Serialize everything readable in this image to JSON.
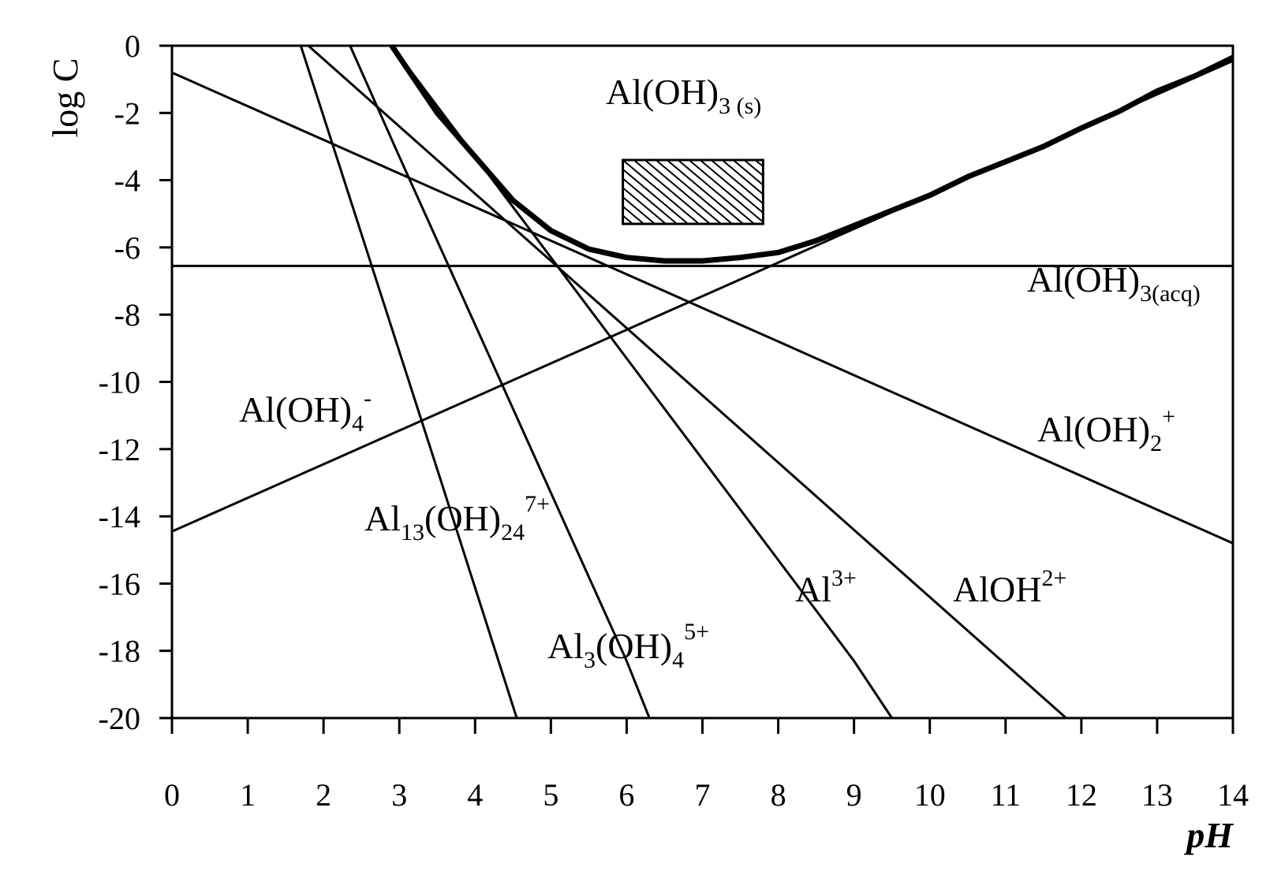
{
  "chart_data": {
    "type": "line",
    "xlabel": "pH",
    "ylabel": "log C",
    "xlim": [
      0,
      14
    ],
    "ylim": [
      -20,
      0
    ],
    "x_ticks": [
      0,
      1,
      2,
      3,
      4,
      5,
      6,
      7,
      8,
      9,
      10,
      11,
      12,
      13,
      14
    ],
    "y_ticks": [
      0,
      -2,
      -4,
      -6,
      -8,
      -10,
      -12,
      -14,
      -16,
      -18,
      -20
    ],
    "x_tick_labels": [
      "0",
      "1",
      "2",
      "3",
      "4",
      "5",
      "6",
      "7",
      "8",
      "9",
      "10",
      "11",
      "12",
      "13",
      "14"
    ],
    "y_tick_labels": [
      "0",
      "-2",
      "-4",
      "-6",
      "-8",
      "-10",
      "-12",
      "-14",
      "-16",
      "-18",
      "-20"
    ],
    "grid": false,
    "legend": "none",
    "series": [
      {
        "name": "Al(OH)3 (s)",
        "style": "bold",
        "x": [
          2.9,
          3.5,
          4.5,
          5.0,
          5.5,
          6.0,
          6.5,
          7.0,
          7.5,
          8.0,
          8.5,
          9.0,
          9.5,
          10.0,
          10.5,
          11.0,
          11.5,
          12.0,
          12.5,
          13.0,
          13.5,
          14.0
        ],
        "y": [
          0,
          -2.0,
          -4.6,
          -5.5,
          -6.05,
          -6.3,
          -6.4,
          -6.4,
          -6.3,
          -6.15,
          -5.8,
          -5.35,
          -4.9,
          -4.45,
          -3.9,
          -3.45,
          -3.0,
          -2.45,
          -1.95,
          -1.35,
          -0.9,
          -0.35
        ]
      },
      {
        "name": "Al(OH)3(acq)",
        "style": "normal",
        "x": [
          0,
          14
        ],
        "y": [
          -6.55,
          -6.55
        ]
      },
      {
        "name": "Al(OH)4-",
        "style": "normal",
        "x": [
          0,
          1,
          2,
          3,
          4,
          5,
          6,
          7,
          8,
          9,
          10,
          11,
          12,
          13,
          14
        ],
        "y": [
          -14.45,
          -13.45,
          -12.45,
          -11.45,
          -10.45,
          -9.45,
          -8.45,
          -7.45,
          -6.45,
          -5.45,
          -4.45,
          -3.45,
          -2.45,
          -1.45,
          -0.45
        ]
      },
      {
        "name": "Al(OH)2+",
        "style": "normal",
        "x": [
          0,
          1,
          2,
          3,
          4,
          5,
          6,
          7,
          8,
          9,
          10,
          11,
          12,
          13,
          14
        ],
        "y": [
          -0.8,
          -1.8,
          -2.8,
          -3.8,
          -4.8,
          -5.8,
          -6.8,
          -7.8,
          -8.8,
          -9.8,
          -10.8,
          -11.8,
          -12.8,
          -13.8,
          -14.8
        ]
      },
      {
        "name": "AlOH2+",
        "style": "normal",
        "x": [
          1.8,
          3,
          4,
          5,
          6,
          7,
          8,
          9,
          10,
          11,
          11.8
        ],
        "y": [
          0,
          -2.4,
          -4.4,
          -6.4,
          -8.4,
          -10.4,
          -12.4,
          -14.4,
          -16.4,
          -18.4,
          -20
        ]
      },
      {
        "name": "Al3+",
        "style": "normal",
        "x": [
          2.9,
          4,
          5,
          6,
          7,
          8,
          9,
          9.5
        ],
        "y": [
          0,
          -3.3,
          -6.3,
          -9.3,
          -12.3,
          -15.3,
          -18.3,
          -20
        ]
      },
      {
        "name": "Al3(OH)45+",
        "style": "normal",
        "x": [
          2.35,
          3,
          4,
          5,
          6,
          6.3
        ],
        "y": [
          0,
          -3.3,
          -8.3,
          -13.3,
          -18.3,
          -20
        ]
      },
      {
        "name": "Al13(OH)247+",
        "style": "normal",
        "x": [
          1.7,
          2.5,
          3.5,
          4.55
        ],
        "y": [
          0,
          -5.6,
          -12.6,
          -20
        ]
      }
    ],
    "annotations": [
      {
        "text": "Al(OH)3 (s)",
        "x": 6.2,
        "y": -2.0
      },
      {
        "text": "Al(OH)3(acq)",
        "x": 11.2,
        "y": -7.6
      },
      {
        "text": "Al(OH)4-",
        "x": 0.9,
        "y": -11.6
      },
      {
        "text": "Al(OH)2+",
        "x": 11.4,
        "y": -12.2
      },
      {
        "text": "Al13(OH)247+",
        "x": 2.5,
        "y": -14.9
      },
      {
        "text": "Al3+",
        "x": 8.3,
        "y": -16.9
      },
      {
        "text": "AlOH2+",
        "x": 10.3,
        "y": -16.9
      },
      {
        "text": "Al3(OH)45+",
        "x": 5.0,
        "y": -18.6
      }
    ],
    "shaded_region": {
      "x": [
        5.95,
        7.8
      ],
      "y": [
        -5.3,
        -3.4
      ]
    }
  },
  "labels": {
    "s_main": "Al(OH)",
    "s_sub": "3 (s)",
    "acq_main": "Al(OH)",
    "acq_sub": "3(acq)",
    "oh4_main": "Al(OH)",
    "oh4_sub": "4",
    "oh4_sup": "-",
    "oh2_main": "Al(OH)",
    "oh2_sub": "2",
    "oh2_sup": "+",
    "al13_a": "Al",
    "al13_sub1": "13",
    "al13_b": "(OH)",
    "al13_sub2": "24",
    "al13_sup": "7+",
    "al3_main": "Al",
    "al3_sup": "3+",
    "aloh_main": "AlOH",
    "aloh_sup": "2+",
    "al3oh4_a": "Al",
    "al3oh4_sub1": "3",
    "al3oh4_b": "(OH)",
    "al3oh4_sub2": "4",
    "al3oh4_sup": "5+"
  },
  "axis_titles": {
    "x": "pH",
    "y": "log C"
  }
}
